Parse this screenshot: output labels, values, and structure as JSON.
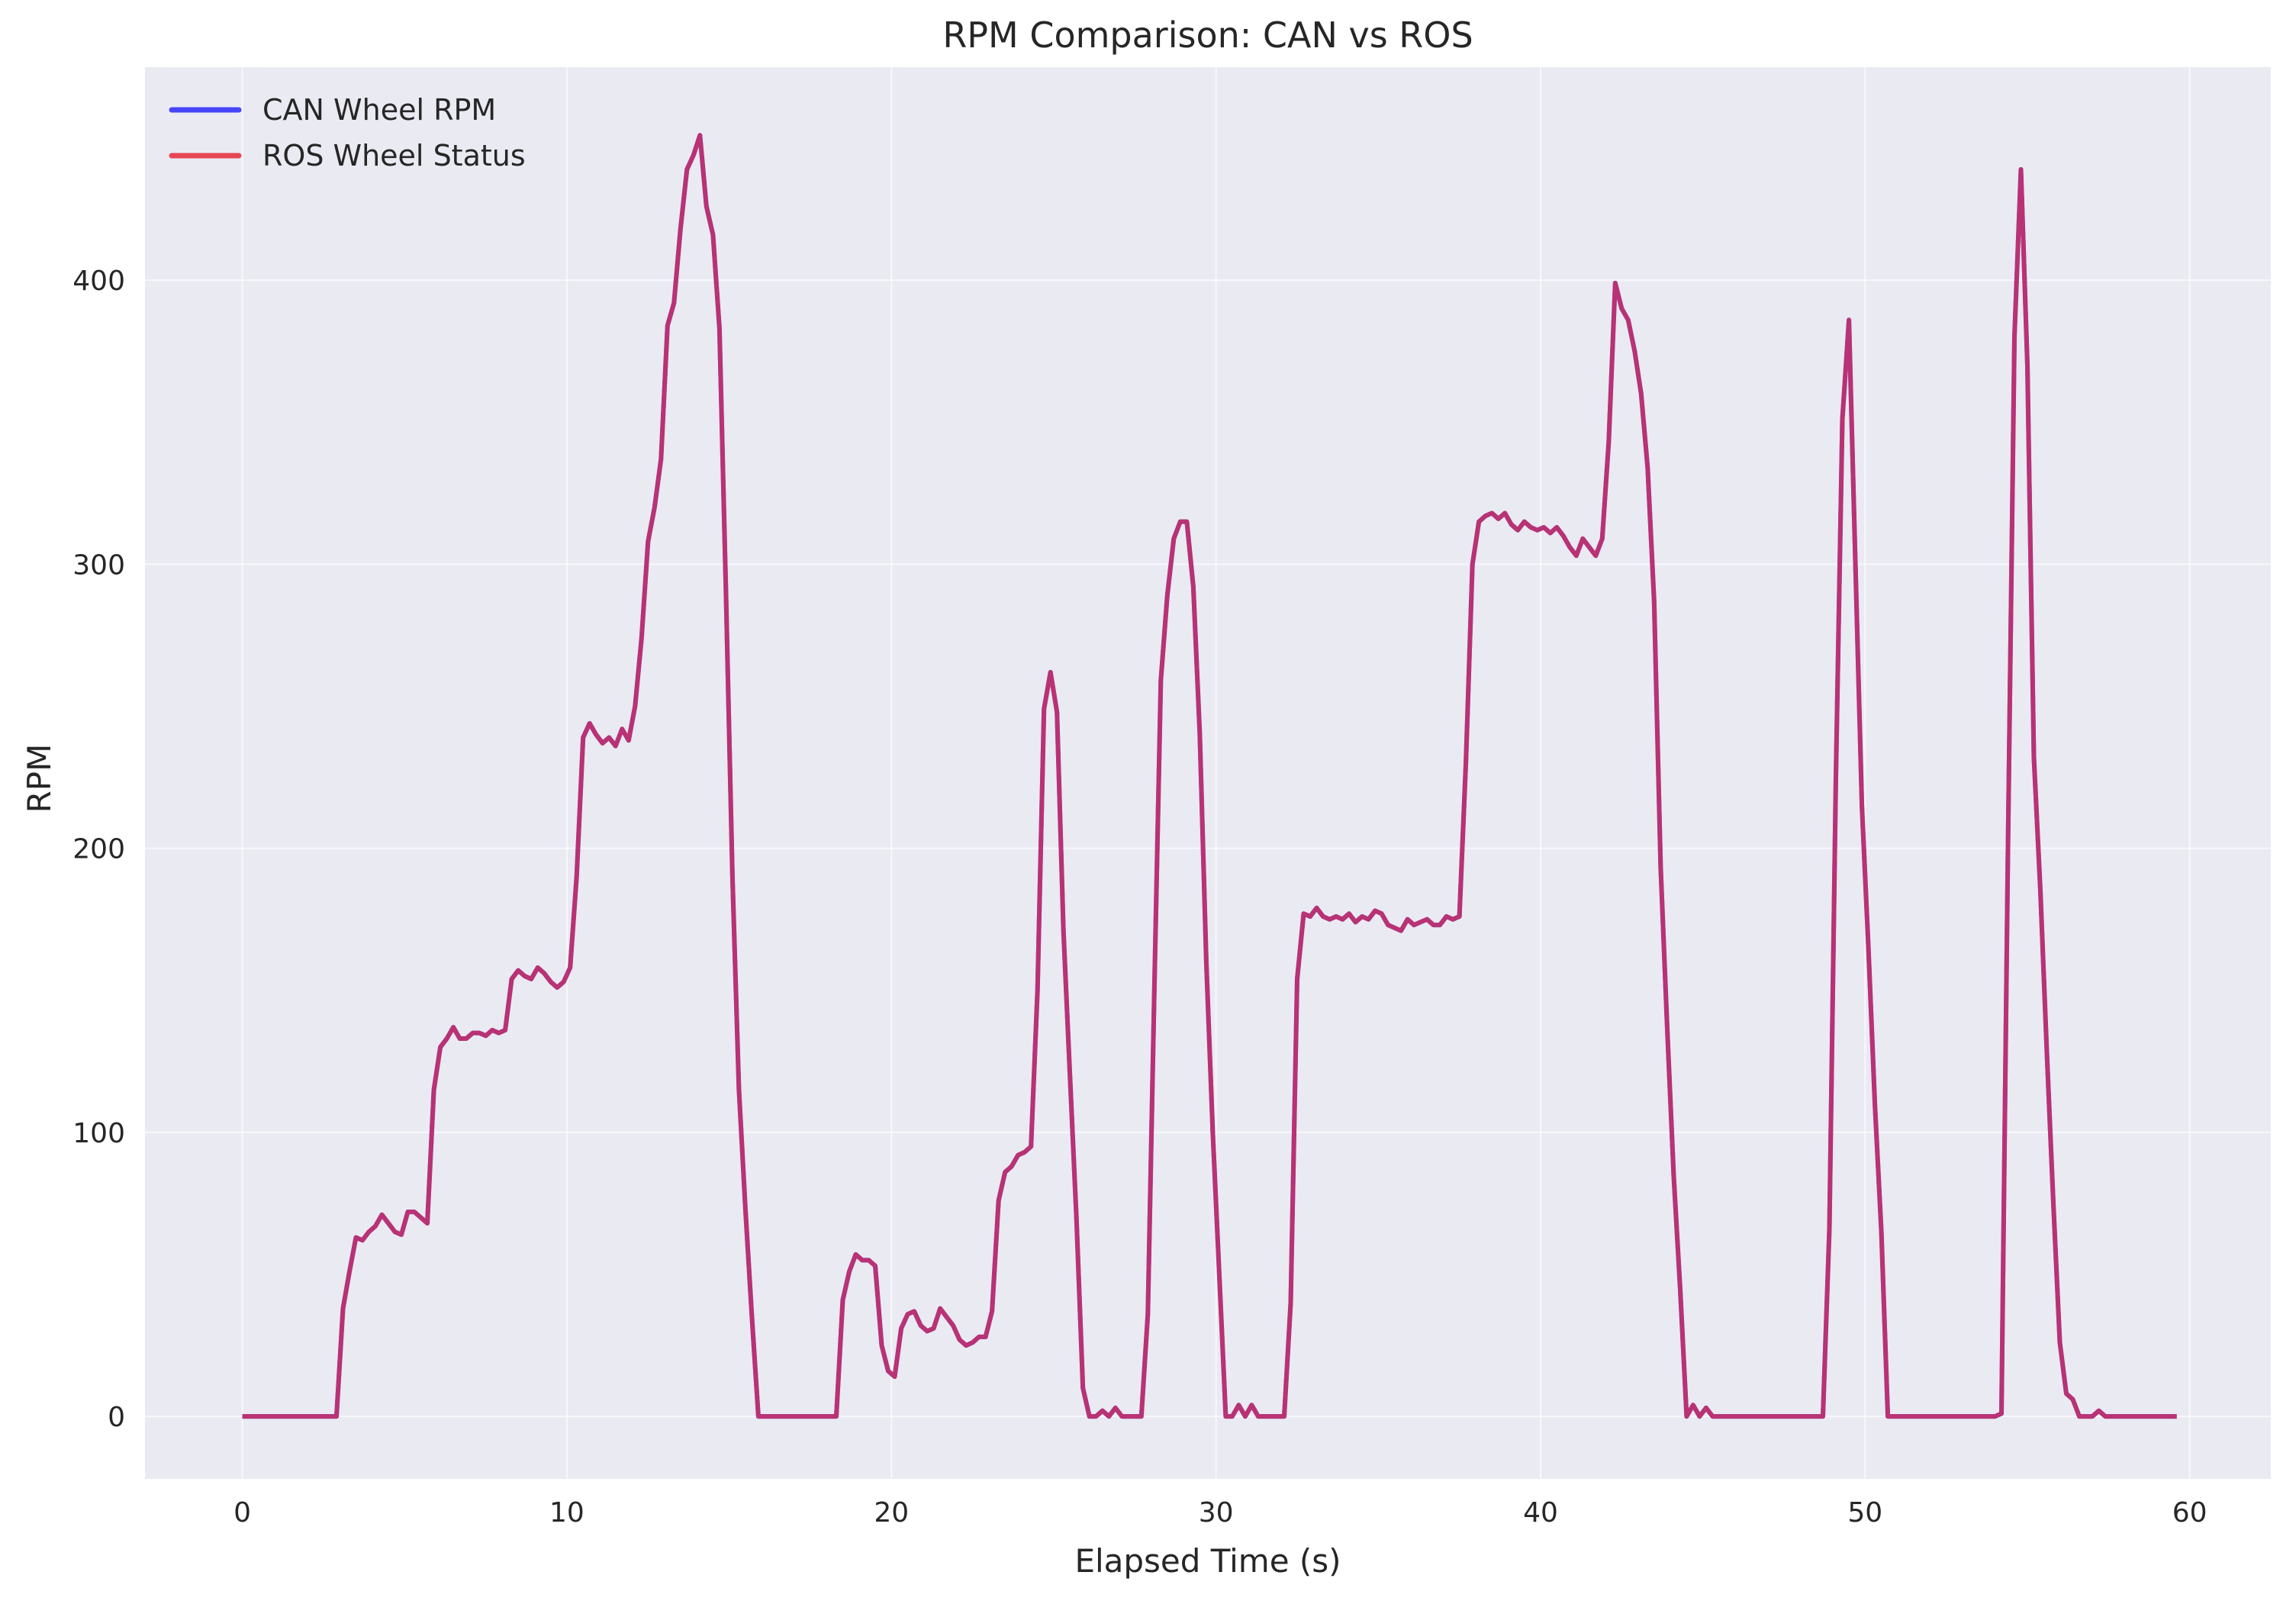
{
  "chart_data": {
    "type": "line",
    "title": "RPM Comparison: CAN vs ROS",
    "xlabel": "Elapsed Time (s)",
    "ylabel": "RPM",
    "xlim": [
      -3,
      62.5
    ],
    "ylim": [
      -22,
      475
    ],
    "xticks": [
      0,
      10,
      20,
      30,
      40,
      50,
      60
    ],
    "yticks": [
      0,
      100,
      200,
      300,
      400
    ],
    "grid": true,
    "legend_position": "top-left",
    "background": "#eaeaf2",
    "series": [
      {
        "name": "CAN Wheel RPM",
        "color": "#0000ff",
        "x": [
          0,
          2.9,
          3.1,
          3.3,
          3.5,
          3.7,
          3.9,
          4.1,
          4.3,
          4.5,
          4.7,
          4.9,
          5.1,
          5.3,
          5.5,
          5.7,
          5.9,
          6.1,
          6.3,
          6.5,
          6.7,
          6.9,
          7.1,
          7.3,
          7.5,
          7.7,
          7.9,
          8.1,
          8.3,
          8.5,
          8.7,
          8.9,
          9.1,
          9.3,
          9.5,
          9.7,
          9.9,
          10.1,
          10.3,
          10.5,
          10.7,
          10.9,
          11.1,
          11.3,
          11.5,
          11.7,
          11.9,
          12.1,
          12.3,
          12.5,
          12.7,
          12.9,
          13.1,
          13.3,
          13.5,
          13.7,
          13.9,
          14.1,
          14.3,
          14.5,
          14.7,
          14.9,
          15.1,
          15.3,
          15.5,
          15.7,
          15.9,
          18.3,
          18.5,
          18.7,
          18.9,
          19.1,
          19.3,
          19.5,
          19.7,
          19.9,
          20.1,
          20.3,
          20.5,
          20.7,
          20.9,
          21.1,
          21.3,
          21.5,
          21.7,
          21.9,
          22.1,
          22.3,
          22.5,
          22.7,
          22.9,
          23.1,
          23.3,
          23.5,
          23.7,
          23.9,
          24.1,
          24.3,
          24.5,
          24.7,
          24.9,
          25.1,
          25.3,
          25.5,
          25.7,
          25.9,
          26.1,
          26.3,
          26.5,
          26.7,
          26.9,
          27.1,
          27.3,
          27.5,
          27.7,
          27.9,
          28.1,
          28.3,
          28.5,
          28.7,
          28.9,
          29.1,
          29.3,
          29.5,
          29.7,
          29.9,
          30.1,
          30.3,
          30.5,
          30.7,
          30.9,
          31.1,
          31.3,
          31.5,
          31.7,
          31.9,
          32.1,
          32.3,
          32.5,
          32.7,
          32.9,
          33.1,
          33.3,
          33.5,
          33.7,
          33.9,
          34.1,
          34.3,
          34.5,
          34.7,
          34.9,
          35.1,
          35.3,
          35.5,
          35.7,
          35.9,
          36.1,
          36.3,
          36.5,
          36.7,
          36.9,
          37.1,
          37.3,
          37.5,
          37.7,
          37.9,
          38.1,
          38.3,
          38.5,
          38.7,
          38.9,
          39.1,
          39.3,
          39.5,
          39.7,
          39.9,
          40.1,
          40.3,
          40.5,
          40.7,
          40.9,
          41.1,
          41.3,
          41.5,
          41.7,
          41.9,
          42.1,
          42.3,
          42.5,
          42.7,
          42.9,
          43.1,
          43.3,
          43.5,
          43.7,
          43.9,
          44.1,
          44.3,
          44.5,
          44.7,
          44.9,
          45.1,
          45.3,
          45.5,
          45.7,
          45.9,
          48.7,
          48.9,
          49.1,
          49.3,
          49.5,
          49.7,
          49.9,
          50.1,
          50.3,
          50.5,
          50.7,
          50.9,
          54.0,
          54.2,
          54.4,
          54.6,
          54.8,
          55.0,
          55.2,
          55.4,
          55.6,
          55.8,
          56.0,
          56.2,
          56.4,
          56.6,
          56.8,
          57.0,
          57.2,
          57.4,
          57.6,
          57.8,
          58.0,
          59.6
        ],
        "y": [
          0,
          0,
          38,
          51,
          63,
          62,
          65,
          67,
          71,
          68,
          65,
          64,
          72,
          72,
          70,
          68,
          115,
          130,
          133,
          137,
          133,
          133,
          135,
          135,
          134,
          136,
          135,
          136,
          154,
          157,
          155,
          154,
          158,
          156,
          153,
          151,
          153,
          158,
          190,
          239,
          244,
          240,
          237,
          239,
          236,
          242,
          238,
          250,
          274,
          308,
          320,
          337,
          384,
          392,
          418,
          439,
          444,
          451,
          426,
          416,
          383,
          290,
          190,
          115,
          73,
          35,
          0,
          0,
          41,
          51,
          57,
          55,
          55,
          53,
          25,
          16,
          14,
          31,
          36,
          37,
          32,
          30,
          31,
          38,
          35,
          32,
          27,
          25,
          26,
          28,
          28,
          37,
          76,
          86,
          88,
          92,
          93,
          95,
          150,
          249,
          262,
          248,
          171,
          120,
          70,
          10,
          0,
          0,
          2,
          0,
          3,
          0,
          0,
          0,
          0,
          36,
          150,
          259,
          289,
          309,
          315,
          315,
          292,
          240,
          160,
          100,
          50,
          0,
          0,
          4,
          0,
          4,
          0,
          0,
          0,
          0,
          0,
          40,
          154,
          177,
          176,
          179,
          176,
          175,
          176,
          175,
          177,
          174,
          176,
          175,
          178,
          177,
          173,
          172,
          171,
          175,
          173,
          174,
          175,
          173,
          173,
          176,
          175,
          176,
          230,
          300,
          315,
          317,
          318,
          316,
          318,
          314,
          312,
          315,
          313,
          312,
          313,
          311,
          313,
          310,
          306,
          303,
          309,
          306,
          303,
          309,
          343,
          399,
          390,
          386,
          375,
          360,
          334,
          287,
          193,
          137,
          85,
          45,
          0,
          4,
          0,
          3,
          0,
          0,
          0,
          0,
          0,
          66,
          225,
          351,
          386,
          300,
          215,
          165,
          110,
          65,
          0,
          0,
          0,
          1,
          200,
          380,
          439,
          370,
          232,
          185,
          128,
          75,
          26,
          8,
          6,
          0,
          0,
          0,
          2,
          0,
          0,
          0,
          0,
          0
        ]
      },
      {
        "name": "ROS Wheel Status",
        "color": "#e8293a",
        "x": [
          0,
          2.9,
          3.1,
          3.3,
          3.5,
          3.7,
          3.9,
          4.1,
          4.3,
          4.5,
          4.7,
          4.9,
          5.1,
          5.3,
          5.5,
          5.7,
          5.9,
          6.1,
          6.3,
          6.5,
          6.7,
          6.9,
          7.1,
          7.3,
          7.5,
          7.7,
          7.9,
          8.1,
          8.3,
          8.5,
          8.7,
          8.9,
          9.1,
          9.3,
          9.5,
          9.7,
          9.9,
          10.1,
          10.3,
          10.5,
          10.7,
          10.9,
          11.1,
          11.3,
          11.5,
          11.7,
          11.9,
          12.1,
          12.3,
          12.5,
          12.7,
          12.9,
          13.1,
          13.3,
          13.5,
          13.7,
          13.9,
          14.1,
          14.3,
          14.5,
          14.7,
          14.9,
          15.1,
          15.3,
          15.5,
          15.7,
          15.9,
          18.3,
          18.5,
          18.7,
          18.9,
          19.1,
          19.3,
          19.5,
          19.7,
          19.9,
          20.1,
          20.3,
          20.5,
          20.7,
          20.9,
          21.1,
          21.3,
          21.5,
          21.7,
          21.9,
          22.1,
          22.3,
          22.5,
          22.7,
          22.9,
          23.1,
          23.3,
          23.5,
          23.7,
          23.9,
          24.1,
          24.3,
          24.5,
          24.7,
          24.9,
          25.1,
          25.3,
          25.5,
          25.7,
          25.9,
          26.1,
          26.3,
          26.5,
          26.7,
          26.9,
          27.1,
          27.3,
          27.5,
          27.7,
          27.9,
          28.1,
          28.3,
          28.5,
          28.7,
          28.9,
          29.1,
          29.3,
          29.5,
          29.7,
          29.9,
          30.1,
          30.3,
          30.5,
          30.7,
          30.9,
          31.1,
          31.3,
          31.5,
          31.7,
          31.9,
          32.1,
          32.3,
          32.5,
          32.7,
          32.9,
          33.1,
          33.3,
          33.5,
          33.7,
          33.9,
          34.1,
          34.3,
          34.5,
          34.7,
          34.9,
          35.1,
          35.3,
          35.5,
          35.7,
          35.9,
          36.1,
          36.3,
          36.5,
          36.7,
          36.9,
          37.1,
          37.3,
          37.5,
          37.7,
          37.9,
          38.1,
          38.3,
          38.5,
          38.7,
          38.9,
          39.1,
          39.3,
          39.5,
          39.7,
          39.9,
          40.1,
          40.3,
          40.5,
          40.7,
          40.9,
          41.1,
          41.3,
          41.5,
          41.7,
          41.9,
          42.1,
          42.3,
          42.5,
          42.7,
          42.9,
          43.1,
          43.3,
          43.5,
          43.7,
          43.9,
          44.1,
          44.3,
          44.5,
          44.7,
          44.9,
          45.1,
          45.3,
          45.5,
          45.7,
          45.9,
          48.7,
          48.9,
          49.1,
          49.3,
          49.5,
          49.7,
          49.9,
          50.1,
          50.3,
          50.5,
          50.7,
          50.9,
          54.0,
          54.2,
          54.4,
          54.6,
          54.8,
          55.0,
          55.2,
          55.4,
          55.6,
          55.8,
          56.0,
          56.2,
          56.4,
          56.6,
          56.8,
          57.0,
          57.2,
          57.4,
          57.6,
          57.8,
          58.0,
          59.6
        ],
        "y": [
          0,
          0,
          38,
          51,
          63,
          62,
          65,
          67,
          71,
          68,
          65,
          64,
          72,
          72,
          70,
          68,
          115,
          130,
          133,
          137,
          133,
          133,
          135,
          135,
          134,
          136,
          135,
          136,
          154,
          157,
          155,
          154,
          158,
          156,
          153,
          151,
          153,
          158,
          190,
          239,
          244,
          240,
          237,
          239,
          236,
          242,
          238,
          250,
          274,
          308,
          320,
          337,
          384,
          392,
          418,
          439,
          444,
          451,
          426,
          416,
          383,
          290,
          190,
          115,
          73,
          35,
          0,
          0,
          41,
          51,
          57,
          55,
          55,
          53,
          25,
          16,
          14,
          31,
          36,
          37,
          32,
          30,
          31,
          38,
          35,
          32,
          27,
          25,
          26,
          28,
          28,
          37,
          76,
          86,
          88,
          92,
          93,
          95,
          150,
          249,
          262,
          248,
          171,
          120,
          70,
          10,
          0,
          0,
          2,
          0,
          3,
          0,
          0,
          0,
          0,
          36,
          150,
          259,
          289,
          309,
          315,
          315,
          292,
          240,
          160,
          100,
          50,
          0,
          0,
          4,
          0,
          4,
          0,
          0,
          0,
          0,
          0,
          40,
          154,
          177,
          176,
          179,
          176,
          175,
          176,
          175,
          177,
          174,
          176,
          175,
          178,
          177,
          173,
          172,
          171,
          175,
          173,
          174,
          175,
          173,
          173,
          176,
          175,
          176,
          230,
          300,
          315,
          317,
          318,
          316,
          318,
          314,
          312,
          315,
          313,
          312,
          313,
          311,
          313,
          310,
          306,
          303,
          309,
          306,
          303,
          309,
          343,
          399,
          390,
          386,
          375,
          360,
          334,
          287,
          193,
          137,
          85,
          45,
          0,
          4,
          0,
          3,
          0,
          0,
          0,
          0,
          0,
          66,
          225,
          351,
          386,
          300,
          215,
          165,
          110,
          65,
          0,
          0,
          0,
          1,
          200,
          380,
          439,
          370,
          232,
          185,
          128,
          75,
          26,
          8,
          6,
          0,
          0,
          0,
          2,
          0,
          0,
          0,
          0,
          0
        ]
      }
    ]
  }
}
